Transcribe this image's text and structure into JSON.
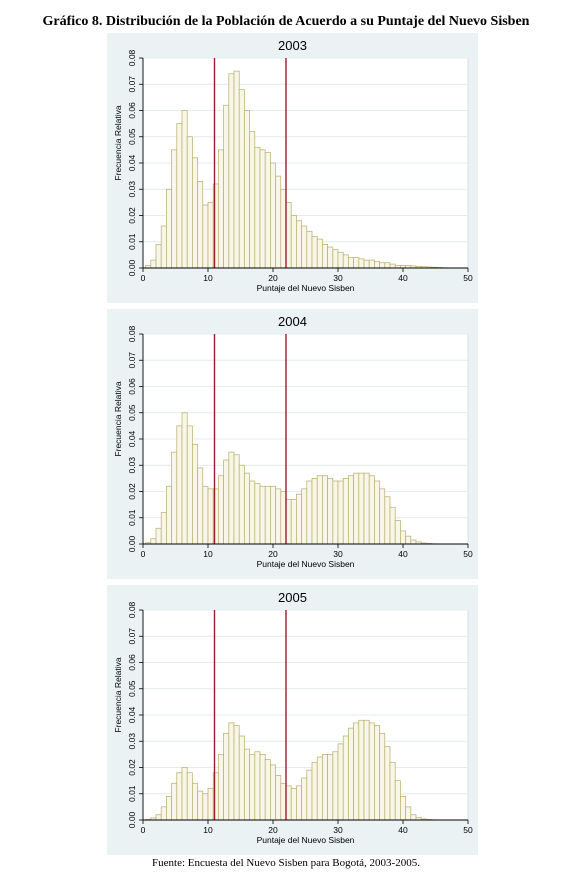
{
  "figure": {
    "title": "Gráfico 8. Distribución de la Población de Acuerdo a su Puntaje del Nuevo Sisben",
    "source": "Fuente: Encuesta del Nuevo Sisben para Bogotá, 2003-2005."
  },
  "colors": {
    "panel_background": "#eaf2f3",
    "plot_background": "#ffffff",
    "bar_fill": "#f8f6e6",
    "bar_stroke": "#b7ae6c",
    "reference_line": "#9b1c2e",
    "grid": "#e4ecec"
  },
  "chart_data": [
    {
      "type": "bar",
      "title": "2003",
      "xlabel": "Puntaje del Nuevo Sisben",
      "ylabel": "Frecuencia Relativa",
      "xlim": [
        0,
        50
      ],
      "ylim": [
        0,
        0.08
      ],
      "xticks": [
        "0",
        "10",
        "20",
        "30",
        "40",
        "50"
      ],
      "yticks": [
        "0.00",
        "0.01",
        "0.02",
        "0.03",
        "0.04",
        "0.05",
        "0.06",
        "0.07",
        "0.08"
      ],
      "grid": true,
      "reference_lines_x": [
        11,
        22
      ],
      "bin_width": 0.8,
      "bin_start": 0.4,
      "values": [
        0.001,
        0.003,
        0.009,
        0.016,
        0.03,
        0.045,
        0.055,
        0.06,
        0.05,
        0.042,
        0.033,
        0.024,
        0.025,
        0.032,
        0.045,
        0.062,
        0.074,
        0.075,
        0.068,
        0.06,
        0.052,
        0.046,
        0.045,
        0.044,
        0.04,
        0.035,
        0.03,
        0.025,
        0.02,
        0.018,
        0.016,
        0.014,
        0.012,
        0.011,
        0.009,
        0.008,
        0.007,
        0.006,
        0.005,
        0.004,
        0.004,
        0.0035,
        0.003,
        0.003,
        0.0025,
        0.002,
        0.002,
        0.0015,
        0.001,
        0.001,
        0.001,
        0.0008,
        0.0006,
        0.0005,
        0.0004,
        0.0003,
        0.0002,
        0.0001,
        0.0,
        0.0
      ]
    },
    {
      "type": "bar",
      "title": "2004",
      "xlabel": "Puntaje del Nuevo Sisben",
      "ylabel": "Frecuencia Relativa",
      "xlim": [
        0,
        50
      ],
      "ylim": [
        0,
        0.08
      ],
      "xticks": [
        "0",
        "10",
        "20",
        "30",
        "40",
        "50"
      ],
      "yticks": [
        "0.00",
        "0.01",
        "0.02",
        "0.03",
        "0.04",
        "0.05",
        "0.06",
        "0.07",
        "0.08"
      ],
      "grid": true,
      "reference_lines_x": [
        11,
        22
      ],
      "bin_width": 0.8,
      "bin_start": 0.4,
      "values": [
        0.0005,
        0.002,
        0.006,
        0.012,
        0.022,
        0.035,
        0.045,
        0.05,
        0.045,
        0.038,
        0.029,
        0.022,
        0.021,
        0.021,
        0.026,
        0.032,
        0.035,
        0.034,
        0.03,
        0.027,
        0.024,
        0.023,
        0.022,
        0.022,
        0.022,
        0.021,
        0.02,
        0.017,
        0.017,
        0.019,
        0.021,
        0.024,
        0.025,
        0.026,
        0.026,
        0.025,
        0.024,
        0.024,
        0.025,
        0.026,
        0.027,
        0.027,
        0.027,
        0.026,
        0.024,
        0.021,
        0.018,
        0.014,
        0.009,
        0.005,
        0.003,
        0.0015,
        0.0008,
        0.0004,
        0.0002,
        0.0001,
        0.0,
        0.0,
        0.0,
        0.0
      ]
    },
    {
      "type": "bar",
      "title": "2005",
      "xlabel": "Puntaje del Nuevo Sisben",
      "ylabel": "Frecuencia Relativa",
      "xlim": [
        0,
        50
      ],
      "ylim": [
        0,
        0.08
      ],
      "xticks": [
        "0",
        "10",
        "20",
        "30",
        "40",
        "50"
      ],
      "yticks": [
        "0.00",
        "0.01",
        "0.02",
        "0.03",
        "0.04",
        "0.05",
        "0.06",
        "0.07",
        "0.08"
      ],
      "grid": true,
      "reference_lines_x": [
        11,
        22
      ],
      "bin_width": 0.8,
      "bin_start": 0.4,
      "values": [
        0.0002,
        0.0008,
        0.002,
        0.005,
        0.009,
        0.014,
        0.018,
        0.02,
        0.018,
        0.014,
        0.011,
        0.01,
        0.012,
        0.018,
        0.025,
        0.033,
        0.037,
        0.036,
        0.032,
        0.027,
        0.025,
        0.026,
        0.025,
        0.023,
        0.021,
        0.017,
        0.014,
        0.013,
        0.012,
        0.013,
        0.016,
        0.019,
        0.022,
        0.024,
        0.025,
        0.025,
        0.026,
        0.029,
        0.032,
        0.035,
        0.037,
        0.038,
        0.038,
        0.037,
        0.036,
        0.033,
        0.028,
        0.022,
        0.015,
        0.009,
        0.005,
        0.002,
        0.001,
        0.0004,
        0.0002,
        0.0001,
        0.0,
        0.0,
        0.0,
        0.0
      ]
    }
  ]
}
